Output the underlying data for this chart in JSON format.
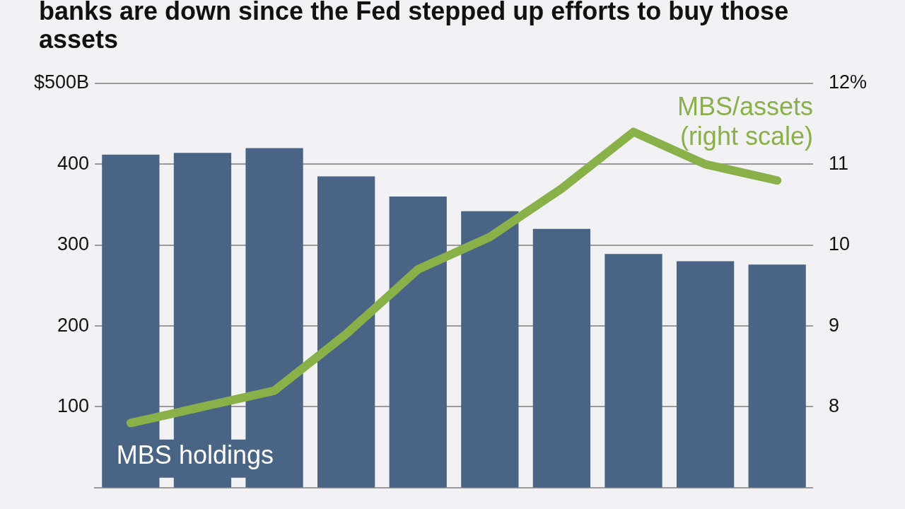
{
  "chart_data": {
    "type": "bar",
    "title": "banks are down since the Fed stepped up efforts to buy those assets",
    "categories": [
      null,
      null,
      null,
      null,
      null,
      null,
      null,
      null,
      null,
      null
    ],
    "series": [
      {
        "color": "#4a6485",
        "values": [
          412,
          414,
          420,
          385,
          360,
          342,
          320,
          289,
          280,
          276
        ]
      },
      {
        "type": "line",
        "axis": "y2",
        "color": "#8ab04a",
        "values": [
          7.8,
          8.0,
          8.2,
          8.9,
          9.7,
          10.1,
          10.7,
          11.4,
          11.0,
          10.8
        ]
      }
    ],
    "ylim": [
      0,
      500
    ],
    "yticks": [
      {
        "value": 100,
        "label": "100"
      },
      {
        "value": 200,
        "label": "200"
      },
      {
        "value": 300,
        "label": "300"
      },
      {
        "value": 400,
        "label": "400"
      },
      {
        "value": 500,
        "label": "$500B"
      }
    ],
    "y2lim": [
      7,
      12
    ],
    "y2ticks": [
      {
        "value": 8,
        "label": "8"
      },
      {
        "value": 9,
        "label": "9"
      },
      {
        "value": 10,
        "label": "10"
      },
      {
        "value": 11,
        "label": "11"
      },
      {
        "value": 12,
        "label": "12%"
      }
    ],
    "grid": "y",
    "legend": false,
    "marker": "none",
    "annotations": [
      "MBS/assets (right scale)",
      "MBS holdings"
    ]
  }
}
